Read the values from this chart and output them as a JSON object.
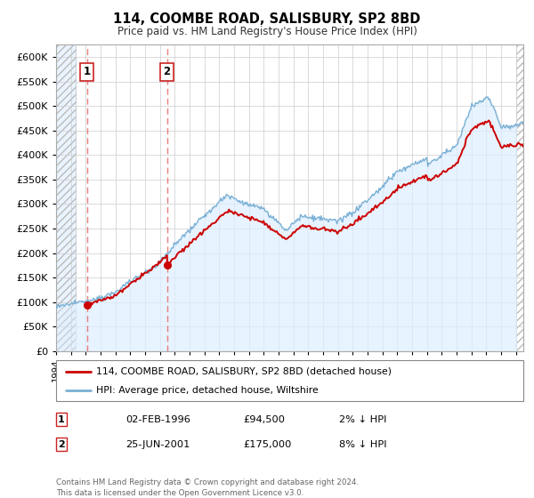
{
  "title": "114, COOMBE ROAD, SALISBURY, SP2 8BD",
  "subtitle": "Price paid vs. HM Land Registry's House Price Index (HPI)",
  "legend_label1": "114, COOMBE ROAD, SALISBURY, SP2 8BD (detached house)",
  "legend_label2": "HPI: Average price, detached house, Wiltshire",
  "annotation1_label": "1",
  "annotation1_date": "02-FEB-1996",
  "annotation1_price": "£94,500",
  "annotation1_hpi": "2% ↓ HPI",
  "annotation2_label": "2",
  "annotation2_date": "25-JUN-2001",
  "annotation2_price": "£175,000",
  "annotation2_hpi": "8% ↓ HPI",
  "footer": "Contains HM Land Registry data © Crown copyright and database right 2024.\nThis data is licensed under the Open Government Licence v3.0.",
  "price_color": "#cc0000",
  "hpi_color": "#7ab0d4",
  "hpi_fill_color": "#ddeeff",
  "annotation_line_color": "#e87070",
  "ylim": [
    0,
    625000
  ],
  "yticks": [
    0,
    50000,
    100000,
    150000,
    200000,
    250000,
    300000,
    350000,
    400000,
    450000,
    500000,
    550000,
    600000
  ],
  "sale1_year": 1996.08,
  "sale1_price": 94500,
  "sale2_year": 2001.48,
  "sale2_price": 175000,
  "xmin": 1994.0,
  "xmax": 2025.5
}
